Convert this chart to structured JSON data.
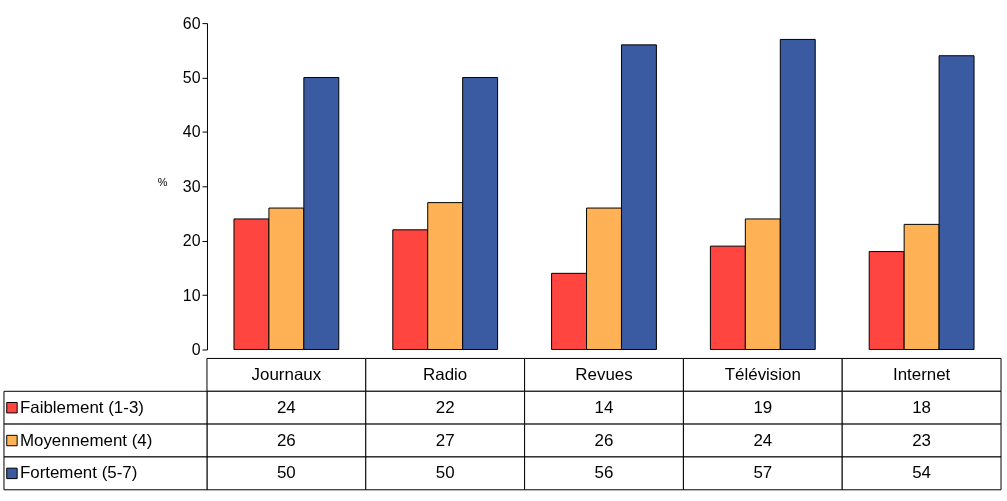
{
  "chart_data": {
    "type": "bar",
    "ylabel": "%",
    "categories": [
      "Journaux",
      "Radio",
      "Revues",
      "Télévision",
      "Internet"
    ],
    "series": [
      {
        "name": "Faiblement (1-3)",
        "color": "#ff4540",
        "values": [
          24,
          22,
          14,
          19,
          18
        ]
      },
      {
        "name": "Moyennement (4)",
        "color": "#ffb255",
        "values": [
          26,
          27,
          26,
          24,
          23
        ]
      },
      {
        "name": "Fortement (5-7)",
        "color": "#3a5ba2",
        "values": [
          50,
          50,
          56,
          57,
          54
        ]
      }
    ],
    "ylim": [
      0,
      60
    ],
    "yticks": [
      0,
      10,
      20,
      30,
      40,
      50,
      60
    ],
    "grid": false,
    "data_labels": true,
    "legend": "bottom"
  }
}
